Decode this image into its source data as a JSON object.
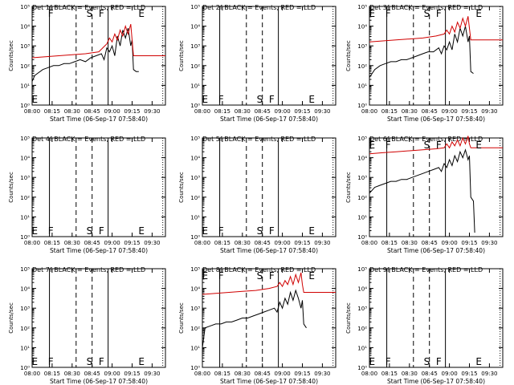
{
  "x_axis_title": "Start Time (06-Sep-17 07:58:40)",
  "y_axis_title": "Counts/sec",
  "x_ticks": [
    "08:00",
    "08:15",
    "08:30",
    "08:45",
    "09:00",
    "09:15",
    "09:30"
  ],
  "y_ticks": [
    "10⁰",
    "10¹",
    "10²",
    "10³",
    "10⁴",
    "10⁵"
  ],
  "y_log_range": [
    0,
    5
  ],
  "x_range_minutes": [
    0,
    100
  ],
  "colors": {
    "events": "#000000",
    "lld": "#d00000"
  },
  "chart_data": [
    {
      "type": "line",
      "title": "Det 1f BLACK = Events, RED = LLD",
      "has_data": true,
      "markers": [
        {
          "label": "E",
          "t": 2,
          "pos": "bottom"
        },
        {
          "label": "F",
          "t": 14,
          "pos": "top"
        },
        {
          "label": "S",
          "t": 43,
          "pos": "top"
        },
        {
          "label": "F",
          "t": 52,
          "pos": "top"
        },
        {
          "label": "E",
          "t": 82,
          "pos": "top"
        }
      ],
      "series": [
        {
          "color": "events",
          "points": [
            [
              0,
              1.2
            ],
            [
              2,
              1.5
            ],
            [
              4,
              1.6
            ],
            [
              8,
              1.8
            ],
            [
              12,
              1.9
            ],
            [
              16,
              2.0
            ],
            [
              20,
              2.0
            ],
            [
              24,
              2.1
            ],
            [
              28,
              2.1
            ],
            [
              32,
              2.2
            ],
            [
              36,
              2.3
            ],
            [
              40,
              2.2
            ],
            [
              44,
              2.4
            ],
            [
              48,
              2.5
            ],
            [
              52,
              2.6
            ],
            [
              54,
              2.3
            ],
            [
              56,
              2.9
            ],
            [
              58,
              2.7
            ],
            [
              60,
              3.0
            ],
            [
              62,
              2.5
            ],
            [
              64,
              3.5
            ],
            [
              66,
              3.0
            ],
            [
              68,
              3.8
            ],
            [
              70,
              3.4
            ],
            [
              72,
              3.9
            ],
            [
              74,
              3.0
            ],
            [
              75,
              3.3
            ],
            [
              76,
              1.8
            ],
            [
              78,
              1.7
            ],
            [
              80,
              1.7
            ]
          ]
        },
        {
          "color": "lld",
          "points": [
            [
              0,
              2.4
            ],
            [
              10,
              2.45
            ],
            [
              20,
              2.5
            ],
            [
              30,
              2.55
            ],
            [
              40,
              2.6
            ],
            [
              50,
              2.7
            ],
            [
              56,
              3.1
            ],
            [
              58,
              3.4
            ],
            [
              60,
              3.2
            ],
            [
              62,
              3.6
            ],
            [
              64,
              3.3
            ],
            [
              66,
              3.8
            ],
            [
              68,
              3.5
            ],
            [
              70,
              4.0
            ],
            [
              72,
              3.6
            ],
            [
              74,
              4.1
            ],
            [
              75,
              3.3
            ],
            [
              76,
              2.5
            ],
            [
              85,
              2.5
            ],
            [
              100,
              2.5
            ]
          ]
        }
      ]
    },
    {
      "type": "line",
      "title": "Det 2f BLACK = Events, RED = LLD",
      "has_data": false,
      "markers": [
        {
          "label": "E",
          "t": 2,
          "pos": "bottom"
        },
        {
          "label": "F",
          "t": 14,
          "pos": "bottom"
        },
        {
          "label": "S",
          "t": 43,
          "pos": "bottom"
        },
        {
          "label": "F",
          "t": 52,
          "pos": "bottom"
        },
        {
          "label": "E",
          "t": 82,
          "pos": "bottom"
        }
      ],
      "series": []
    },
    {
      "type": "line",
      "title": "Det 3f BLACK = Events, RED = LLD",
      "has_data": true,
      "markers": [
        {
          "label": "E",
          "t": 2,
          "pos": "top"
        },
        {
          "label": "F",
          "t": 14,
          "pos": "top"
        },
        {
          "label": "S",
          "t": 43,
          "pos": "top"
        },
        {
          "label": "F",
          "t": 52,
          "pos": "top"
        },
        {
          "label": "E",
          "t": 82,
          "pos": "top"
        }
      ],
      "series": [
        {
          "color": "events",
          "points": [
            [
              0,
              1.4
            ],
            [
              4,
              1.8
            ],
            [
              8,
              2.0
            ],
            [
              12,
              2.1
            ],
            [
              16,
              2.2
            ],
            [
              20,
              2.2
            ],
            [
              24,
              2.3
            ],
            [
              28,
              2.3
            ],
            [
              32,
              2.4
            ],
            [
              36,
              2.5
            ],
            [
              40,
              2.6
            ],
            [
              44,
              2.7
            ],
            [
              48,
              2.7
            ],
            [
              52,
              2.9
            ],
            [
              54,
              2.6
            ],
            [
              56,
              3.0
            ],
            [
              58,
              2.8
            ],
            [
              60,
              3.2
            ],
            [
              62,
              2.8
            ],
            [
              64,
              3.6
            ],
            [
              66,
              3.2
            ],
            [
              68,
              3.9
            ],
            [
              70,
              3.5
            ],
            [
              72,
              4.0
            ],
            [
              74,
              3.2
            ],
            [
              75,
              3.5
            ],
            [
              76,
              1.7
            ],
            [
              78,
              1.6
            ]
          ]
        },
        {
          "color": "lld",
          "points": [
            [
              0,
              3.2
            ],
            [
              10,
              3.25
            ],
            [
              20,
              3.3
            ],
            [
              30,
              3.35
            ],
            [
              40,
              3.4
            ],
            [
              50,
              3.5
            ],
            [
              56,
              3.6
            ],
            [
              58,
              3.8
            ],
            [
              60,
              3.6
            ],
            [
              62,
              4.0
            ],
            [
              64,
              3.7
            ],
            [
              66,
              4.2
            ],
            [
              68,
              3.9
            ],
            [
              70,
              4.4
            ],
            [
              72,
              4.0
            ],
            [
              74,
              4.5
            ],
            [
              75,
              3.9
            ],
            [
              76,
              3.3
            ],
            [
              85,
              3.3
            ],
            [
              100,
              3.3
            ]
          ]
        }
      ]
    },
    {
      "type": "line",
      "title": "Det 4f BLACK = Events, RED = LLD",
      "has_data": false,
      "markers": [
        {
          "label": "E",
          "t": 2,
          "pos": "bottom"
        },
        {
          "label": "F",
          "t": 14,
          "pos": "bottom"
        },
        {
          "label": "S",
          "t": 43,
          "pos": "bottom"
        },
        {
          "label": "F",
          "t": 52,
          "pos": "bottom"
        },
        {
          "label": "E",
          "t": 82,
          "pos": "bottom"
        }
      ],
      "series": []
    },
    {
      "type": "line",
      "title": "Det 5f BLACK = Events, RED = LLD",
      "has_data": false,
      "markers": [
        {
          "label": "E",
          "t": 2,
          "pos": "bottom"
        },
        {
          "label": "F",
          "t": 14,
          "pos": "bottom"
        },
        {
          "label": "S",
          "t": 43,
          "pos": "bottom"
        },
        {
          "label": "F",
          "t": 52,
          "pos": "bottom"
        },
        {
          "label": "E",
          "t": 82,
          "pos": "bottom"
        }
      ],
      "series": []
    },
    {
      "type": "line",
      "title": "Det 6f BLACK = Events, RED = LLD",
      "has_data": true,
      "markers": [
        {
          "label": "E",
          "t": 2,
          "pos": "top"
        },
        {
          "label": "F",
          "t": 14,
          "pos": "top"
        },
        {
          "label": "S",
          "t": 43,
          "pos": "top"
        },
        {
          "label": "F",
          "t": 52,
          "pos": "top"
        },
        {
          "label": "E",
          "t": 82,
          "pos": "top"
        }
      ],
      "series": [
        {
          "color": "events",
          "points": [
            [
              0,
              2.2
            ],
            [
              4,
              2.5
            ],
            [
              8,
              2.6
            ],
            [
              12,
              2.7
            ],
            [
              16,
              2.8
            ],
            [
              20,
              2.8
            ],
            [
              24,
              2.9
            ],
            [
              28,
              2.9
            ],
            [
              32,
              3.0
            ],
            [
              36,
              3.1
            ],
            [
              40,
              3.2
            ],
            [
              44,
              3.3
            ],
            [
              48,
              3.4
            ],
            [
              52,
              3.5
            ],
            [
              54,
              3.3
            ],
            [
              56,
              3.7
            ],
            [
              58,
              3.5
            ],
            [
              60,
              3.9
            ],
            [
              62,
              3.6
            ],
            [
              64,
              4.1
            ],
            [
              66,
              3.8
            ],
            [
              68,
              4.3
            ],
            [
              70,
              4.0
            ],
            [
              72,
              4.4
            ],
            [
              74,
              3.9
            ],
            [
              75,
              4.1
            ],
            [
              76,
              2.0
            ],
            [
              78,
              1.8
            ],
            [
              79,
              0.2
            ]
          ]
        },
        {
          "color": "lld",
          "points": [
            [
              0,
              4.2
            ],
            [
              10,
              4.25
            ],
            [
              20,
              4.3
            ],
            [
              30,
              4.35
            ],
            [
              40,
              4.4
            ],
            [
              50,
              4.45
            ],
            [
              56,
              4.5
            ],
            [
              58,
              4.7
            ],
            [
              60,
              4.5
            ],
            [
              62,
              4.8
            ],
            [
              64,
              4.6
            ],
            [
              66,
              4.9
            ],
            [
              68,
              4.6
            ],
            [
              70,
              5.0
            ],
            [
              72,
              4.7
            ],
            [
              74,
              5.1
            ],
            [
              75,
              4.7
            ],
            [
              76,
              4.5
            ],
            [
              85,
              4.5
            ],
            [
              100,
              4.5
            ]
          ]
        }
      ]
    },
    {
      "type": "line",
      "title": "Det 7f BLACK = Events, RED = LLD",
      "has_data": false,
      "markers": [
        {
          "label": "E",
          "t": 2,
          "pos": "bottom"
        },
        {
          "label": "F",
          "t": 14,
          "pos": "bottom"
        },
        {
          "label": "S",
          "t": 43,
          "pos": "bottom"
        },
        {
          "label": "F",
          "t": 52,
          "pos": "bottom"
        },
        {
          "label": "E",
          "t": 82,
          "pos": "bottom"
        }
      ],
      "series": []
    },
    {
      "type": "line",
      "title": "Det 8f BLACK = Events, RED = LLD",
      "has_data": true,
      "markers": [
        {
          "label": "E",
          "t": 2,
          "pos": "top"
        },
        {
          "label": "F",
          "t": 14,
          "pos": "top"
        },
        {
          "label": "S",
          "t": 43,
          "pos": "top"
        },
        {
          "label": "F",
          "t": 52,
          "pos": "top"
        },
        {
          "label": "E",
          "t": 82,
          "pos": "top"
        }
      ],
      "series": [
        {
          "color": "events",
          "points": [
            [
              0,
              1.0
            ],
            [
              2,
              2.0
            ],
            [
              6,
              2.1
            ],
            [
              10,
              2.2
            ],
            [
              14,
              2.2
            ],
            [
              18,
              2.3
            ],
            [
              22,
              2.3
            ],
            [
              26,
              2.4
            ],
            [
              30,
              2.5
            ],
            [
              34,
              2.5
            ],
            [
              38,
              2.6
            ],
            [
              42,
              2.7
            ],
            [
              46,
              2.8
            ],
            [
              50,
              2.9
            ],
            [
              54,
              3.0
            ],
            [
              56,
              2.8
            ],
            [
              58,
              3.3
            ],
            [
              60,
              3.0
            ],
            [
              62,
              3.5
            ],
            [
              64,
              3.2
            ],
            [
              66,
              3.8
            ],
            [
              68,
              3.4
            ],
            [
              70,
              3.9
            ],
            [
              72,
              3.5
            ],
            [
              74,
              3.0
            ],
            [
              75,
              3.4
            ],
            [
              76,
              2.2
            ],
            [
              78,
              2.0
            ]
          ]
        },
        {
          "color": "lld",
          "points": [
            [
              0,
              3.7
            ],
            [
              10,
              3.75
            ],
            [
              20,
              3.8
            ],
            [
              30,
              3.85
            ],
            [
              40,
              3.9
            ],
            [
              50,
              4.0
            ],
            [
              56,
              4.1
            ],
            [
              58,
              4.3
            ],
            [
              60,
              4.1
            ],
            [
              62,
              4.4
            ],
            [
              64,
              4.2
            ],
            [
              66,
              4.6
            ],
            [
              68,
              4.2
            ],
            [
              70,
              4.7
            ],
            [
              72,
              4.3
            ],
            [
              74,
              4.8
            ],
            [
              75,
              4.2
            ],
            [
              76,
              3.8
            ],
            [
              85,
              3.8
            ],
            [
              100,
              3.8
            ]
          ]
        }
      ]
    },
    {
      "type": "line",
      "title": "Det 9f BLACK = Events, RED = LLD",
      "has_data": false,
      "markers": [
        {
          "label": "E",
          "t": 2,
          "pos": "bottom"
        },
        {
          "label": "F",
          "t": 14,
          "pos": "bottom"
        },
        {
          "label": "S",
          "t": 43,
          "pos": "bottom"
        },
        {
          "label": "F",
          "t": 52,
          "pos": "bottom"
        },
        {
          "label": "E",
          "t": 82,
          "pos": "bottom"
        }
      ],
      "series": []
    }
  ]
}
